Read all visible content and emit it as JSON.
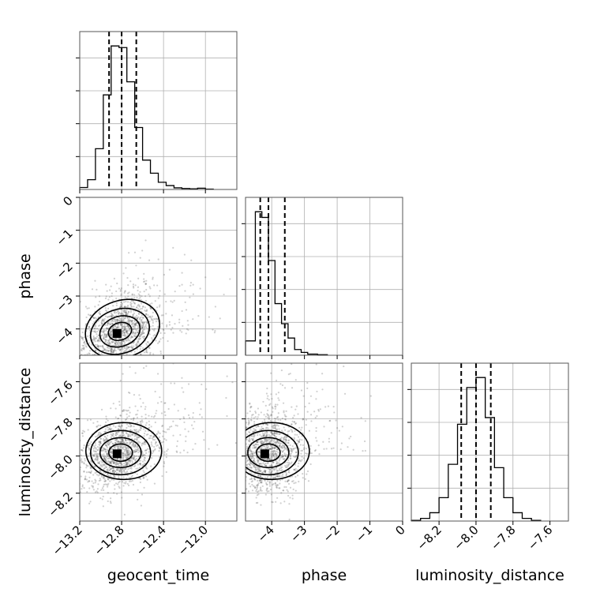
{
  "chart_data": {
    "type": "corner",
    "parameters": [
      "geocent_time",
      "phase",
      "luminosity_distance"
    ],
    "axes": {
      "geocent_time": {
        "label": "geocent_time",
        "range": [
          -13.2,
          -11.7
        ],
        "ticks": [
          -13.2,
          -12.8,
          -12.4,
          -12.0
        ],
        "tick_labels": [
          "−13.2",
          "−12.8",
          "−12.4",
          "−12.0"
        ],
        "quantiles": [
          -12.92,
          -12.8,
          -12.66
        ]
      },
      "phase": {
        "label": "phase",
        "range": [
          -4.8,
          0
        ],
        "ticks": [
          -4,
          -3,
          -2,
          -1,
          0
        ],
        "tick_labels": [
          "−4",
          "−3",
          "−2",
          "−1",
          "0"
        ],
        "quantiles": [
          -4.35,
          -4.1,
          -3.6
        ]
      },
      "luminosity_distance": {
        "label": "luminosity_distance",
        "range": [
          -8.35,
          -7.5
        ],
        "ticks": [
          -8.2,
          -8.0,
          -7.8,
          -7.6
        ],
        "tick_labels": [
          "−8.2",
          "−8.0",
          "−7.8",
          "−7.6"
        ],
        "quantiles": [
          -8.08,
          -8.0,
          -7.92
        ]
      }
    },
    "histograms": {
      "geocent_time": {
        "bin_edges": [
          -13.2,
          -13.125,
          -13.05,
          -12.975,
          -12.9,
          -12.825,
          -12.75,
          -12.675,
          -12.6,
          -12.525,
          -12.45,
          -12.375,
          -12.3,
          -12.225,
          -12.15,
          -12.075,
          -12.0,
          -11.925
        ],
        "counts": [
          0.06,
          0.3,
          1.25,
          2.9,
          4.4,
          4.35,
          3.3,
          1.9,
          0.9,
          0.5,
          0.22,
          0.12,
          0.05,
          0.03,
          0.02,
          0.04,
          0.01
        ]
      },
      "phase": {
        "bin_edges": [
          -4.8,
          -4.5,
          -4.3,
          -4.1,
          -3.9,
          -3.7,
          -3.5,
          -3.3,
          -3.1,
          -2.9,
          -2.6,
          -2.3
        ],
        "counts": [
          0.5,
          5.0,
          4.8,
          3.3,
          1.8,
          1.1,
          0.6,
          0.2,
          0.1,
          0.04,
          0.02
        ]
      },
      "luminosity_distance": {
        "bin_edges": [
          -8.35,
          -8.3,
          -8.25,
          -8.2,
          -8.15,
          -8.1,
          -8.05,
          -8.0,
          -7.95,
          -7.9,
          -7.85,
          -7.8,
          -7.75,
          -7.7,
          -7.65
        ],
        "counts": [
          0.02,
          0.08,
          0.25,
          0.7,
          1.7,
          2.9,
          4.0,
          4.3,
          3.1,
          1.6,
          0.7,
          0.25,
          0.08,
          0.02
        ]
      }
    },
    "density_peaks": {
      "geocent_time_vs_phase": {
        "x": -12.84,
        "y": -4.15
      },
      "geocent_time_vs_luminosity_distance": {
        "x": -12.84,
        "y": -7.99
      },
      "phase_vs_luminosity_distance": {
        "x": -4.2,
        "y": -7.99
      }
    },
    "grid": true
  }
}
